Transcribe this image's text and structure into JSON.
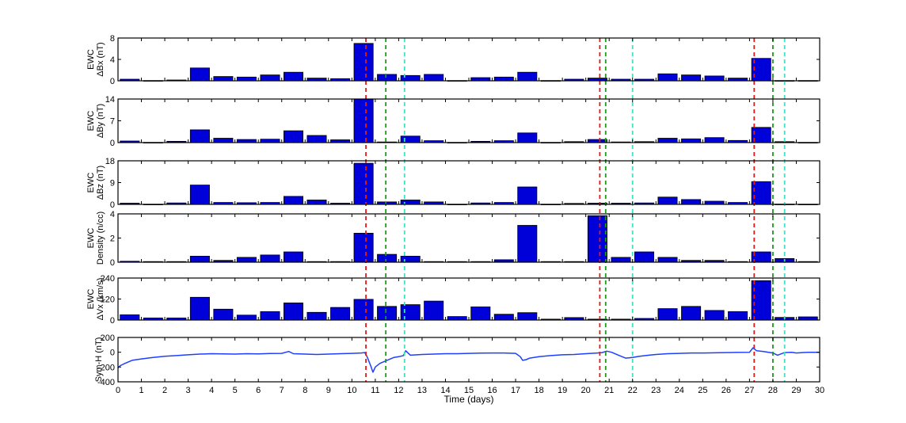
{
  "figure": {
    "xlabel": "Time (days)",
    "xlim": [
      0,
      30
    ],
    "xticks": [
      0,
      1,
      2,
      3,
      4,
      5,
      6,
      7,
      8,
      9,
      10,
      11,
      12,
      13,
      14,
      15,
      16,
      17,
      18,
      19,
      20,
      21,
      22,
      23,
      24,
      25,
      26,
      27,
      28,
      29,
      30
    ]
  },
  "vlines": [
    {
      "x": 10.6,
      "color": "#e31a1c"
    },
    {
      "x": 11.45,
      "color": "#1a9a1a"
    },
    {
      "x": 12.25,
      "color": "#40e0c0"
    },
    {
      "x": 20.6,
      "color": "#e31a1c"
    },
    {
      "x": 20.85,
      "color": "#1a9a1a"
    },
    {
      "x": 22.0,
      "color": "#40e0c0"
    },
    {
      "x": 27.2,
      "color": "#e31a1c"
    },
    {
      "x": 28.0,
      "color": "#1a9a1a"
    },
    {
      "x": 28.5,
      "color": "#40e0c0"
    }
  ],
  "chart_data": [
    {
      "type": "bar",
      "ylabel_lines": [
        "EWC",
        "ΔBx (nT)"
      ],
      "ylim": [
        0,
        8
      ],
      "yticks": [
        0,
        4,
        8
      ],
      "bar_color": "#0000d8",
      "x": [
        0.5,
        1.5,
        2.5,
        3.5,
        4.5,
        5.5,
        6.5,
        7.5,
        8.5,
        9.5,
        10.5,
        11.5,
        12.5,
        13.5,
        14.5,
        15.5,
        16.5,
        17.5,
        18.5,
        19.5,
        20.5,
        21.5,
        22.5,
        23.5,
        24.5,
        25.5,
        26.5,
        27.5,
        28.5,
        29.5
      ],
      "values": [
        0.3,
        0.05,
        0.15,
        2.4,
        0.8,
        0.7,
        1.1,
        1.6,
        0.5,
        0.4,
        7.0,
        1.2,
        1.0,
        1.2,
        0.05,
        0.6,
        0.7,
        1.6,
        0.05,
        0.3,
        0.5,
        0.3,
        0.3,
        1.3,
        1.1,
        0.9,
        0.5,
        4.2,
        0.05,
        0.05
      ]
    },
    {
      "type": "bar",
      "ylabel_lines": [
        "EWC",
        "ΔBy (nT)"
      ],
      "ylim": [
        0,
        14
      ],
      "yticks": [
        0,
        7,
        14
      ],
      "bar_color": "#0000d8",
      "x": [
        0.5,
        1.5,
        2.5,
        3.5,
        4.5,
        5.5,
        6.5,
        7.5,
        8.5,
        9.5,
        10.5,
        11.5,
        12.5,
        13.5,
        14.5,
        15.5,
        16.5,
        17.5,
        18.5,
        19.5,
        20.5,
        21.5,
        22.5,
        23.5,
        24.5,
        25.5,
        26.5,
        27.5,
        28.5,
        29.5
      ],
      "values": [
        0.5,
        0.05,
        0.4,
        4.1,
        1.4,
        1.0,
        1.1,
        3.8,
        2.3,
        0.9,
        14.0,
        0.2,
        2.1,
        0.6,
        0.05,
        0.4,
        0.6,
        3.1,
        0.05,
        0.3,
        1.0,
        0.2,
        0.3,
        1.4,
        1.2,
        1.6,
        0.7,
        4.9,
        0.3,
        0.05
      ]
    },
    {
      "type": "bar",
      "ylabel_lines": [
        "EWC",
        "ΔBz (nT)"
      ],
      "ylim": [
        0,
        18
      ],
      "yticks": [
        0,
        9,
        18
      ],
      "bar_color": "#0000d8",
      "x": [
        0.5,
        1.5,
        2.5,
        3.5,
        4.5,
        5.5,
        6.5,
        7.5,
        8.5,
        9.5,
        10.5,
        11.5,
        12.5,
        13.5,
        14.5,
        15.5,
        16.5,
        17.5,
        18.5,
        19.5,
        20.5,
        21.5,
        22.5,
        23.5,
        24.5,
        25.5,
        26.5,
        27.5,
        28.5,
        29.5
      ],
      "values": [
        0.5,
        0.05,
        0.6,
        8.0,
        0.8,
        0.7,
        0.8,
        3.3,
        1.8,
        0.5,
        17.0,
        1.0,
        1.8,
        1.0,
        0.05,
        0.6,
        0.8,
        7.2,
        0.05,
        0.4,
        0.5,
        0.5,
        0.6,
        3.0,
        2.0,
        1.3,
        0.8,
        9.4,
        0.1,
        0.05
      ]
    },
    {
      "type": "bar",
      "ylabel_lines": [
        "EWC",
        "Density (n/cc)"
      ],
      "ylim": [
        0,
        4
      ],
      "yticks": [
        0,
        2,
        4
      ],
      "bar_color": "#0000d8",
      "x": [
        0.5,
        1.5,
        2.5,
        3.5,
        4.5,
        5.5,
        6.5,
        7.5,
        8.5,
        9.5,
        10.5,
        11.5,
        12.5,
        13.5,
        14.5,
        15.5,
        16.5,
        17.5,
        18.5,
        19.5,
        20.5,
        21.5,
        22.5,
        23.5,
        24.5,
        25.5,
        26.5,
        27.5,
        28.5,
        29.5
      ],
      "values": [
        0.08,
        0.05,
        0.05,
        0.5,
        0.15,
        0.4,
        0.6,
        0.85,
        0.05,
        0.05,
        2.4,
        0.65,
        0.5,
        0.05,
        0.05,
        0.05,
        0.2,
        3.05,
        0.05,
        0.05,
        3.85,
        0.4,
        0.85,
        0.4,
        0.15,
        0.15,
        0.05,
        0.85,
        0.3,
        0.05
      ]
    },
    {
      "type": "bar",
      "ylabel_lines": [
        "EWC",
        "ΔVx (km/s)"
      ],
      "ylim": [
        0,
        240
      ],
      "yticks": [
        0,
        120,
        240
      ],
      "bar_color": "#0000d8",
      "x": [
        0.5,
        1.5,
        2.5,
        3.5,
        4.5,
        5.5,
        6.5,
        7.5,
        8.5,
        9.5,
        10.5,
        11.5,
        12.5,
        13.5,
        14.5,
        15.5,
        16.5,
        17.5,
        18.5,
        19.5,
        20.5,
        21.5,
        22.5,
        23.5,
        24.5,
        25.5,
        26.5,
        27.5,
        28.5,
        29.5
      ],
      "values": [
        30,
        12,
        12,
        130,
        62,
        28,
        48,
        98,
        44,
        72,
        118,
        78,
        88,
        108,
        20,
        75,
        33,
        42,
        5,
        14,
        5,
        5,
        9,
        65,
        78,
        55,
        48,
        225,
        15,
        18
      ]
    },
    {
      "type": "line",
      "ylabel_lines": [
        "Sym-H (nT)"
      ],
      "ylim": [
        -400,
        200
      ],
      "yticks": [
        -400,
        -200,
        0,
        200
      ],
      "line_color": "#1f3fff",
      "x": [
        0,
        0.1,
        0.3,
        0.6,
        1.0,
        1.5,
        2.0,
        2.5,
        3.0,
        3.5,
        4.0,
        4.5,
        5.0,
        5.5,
        6.0,
        6.5,
        7.0,
        7.3,
        7.5,
        8.0,
        8.5,
        9.0,
        9.5,
        10.0,
        10.4,
        10.55,
        10.65,
        10.8,
        10.9,
        11.0,
        11.2,
        11.5,
        11.8,
        12.0,
        12.2,
        12.3,
        12.5,
        13.0,
        13.5,
        14.0,
        14.5,
        15.0,
        15.5,
        16.0,
        16.5,
        17.0,
        17.2,
        17.3,
        17.45,
        17.6,
        18.0,
        18.5,
        19.0,
        19.5,
        20.0,
        20.5,
        20.7,
        20.9,
        21.1,
        21.4,
        21.7,
        22.0,
        22.3,
        22.7,
        23.0,
        23.5,
        24.0,
        24.5,
        25.0,
        25.5,
        26.0,
        26.5,
        27.0,
        27.15,
        27.3,
        27.6,
        28.0,
        28.2,
        28.5,
        28.8,
        29.0,
        29.5,
        30.0
      ],
      "values": [
        -210,
        -180,
        -150,
        -110,
        -90,
        -70,
        -55,
        -45,
        -35,
        -25,
        -20,
        -22,
        -25,
        -20,
        -22,
        -18,
        -15,
        10,
        -20,
        -25,
        -30,
        -25,
        -20,
        -15,
        -10,
        -5,
        -60,
        -180,
        -270,
        -200,
        -150,
        -110,
        -70,
        -60,
        -45,
        20,
        -40,
        -30,
        -25,
        -20,
        -20,
        -15,
        -12,
        -10,
        -10,
        -15,
        -60,
        -110,
        -100,
        -80,
        -60,
        -45,
        -35,
        -30,
        -20,
        -10,
        -5,
        15,
        0,
        -40,
        -80,
        -70,
        -55,
        -40,
        -30,
        -20,
        -15,
        -10,
        -10,
        -8,
        -5,
        -3,
        0,
        60,
        20,
        10,
        -10,
        -40,
        -5,
        0,
        -10,
        0,
        0
      ]
    }
  ]
}
